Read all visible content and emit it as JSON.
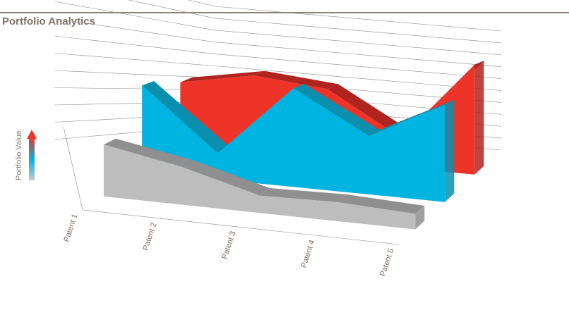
{
  "header": {
    "title": "Portfolio Analytics"
  },
  "chart_data": {
    "type": "area",
    "title": "",
    "xlabel": "",
    "ylabel": "Portfolio Value",
    "categories": [
      "Patent 1",
      "Patent 2",
      "Patent 3",
      "Patent 4",
      "Patent 5"
    ],
    "ylim": [
      0,
      10
    ],
    "grid": true,
    "legend": "none",
    "style": "3d-stacked-depth",
    "series": [
      {
        "color": "#bdbdbd",
        "side_color": "#8f8f8f",
        "values": [
          3.0,
          2.2,
          1.0,
          1.1,
          0.9
        ]
      },
      {
        "color": "#00b4e1",
        "side_color": "#0b8fae",
        "values": [
          5.6,
          1.7,
          6.4,
          3.8,
          6.3
        ]
      },
      {
        "color": "#ee3328",
        "side_color": "#b02420",
        "values": [
          4.8,
          5.8,
          5.3,
          2.2,
          8.1
        ]
      }
    ],
    "colorbar": {
      "top": "#ee3328",
      "middle": "#00b4e1",
      "bottom": "#c8c8c8"
    }
  }
}
